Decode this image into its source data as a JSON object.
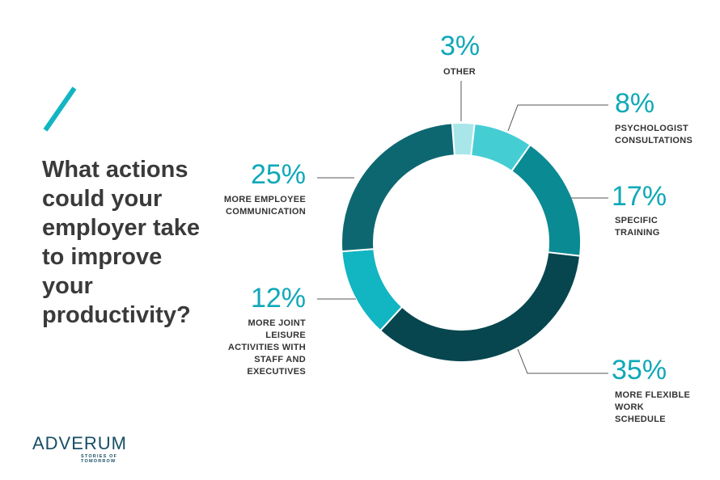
{
  "question": "What actions could your employer take to improve your productivity?",
  "logo": {
    "wordmark": "ADVERUM",
    "tagline": "STORIES OF TOMORROW"
  },
  "chart_data": {
    "type": "donut",
    "title": "",
    "unit": "%",
    "slices": [
      {
        "label": "OTHER",
        "value": 3,
        "display": "3%",
        "color": "#a8e6ea"
      },
      {
        "label": "PSYCHOLOGIST CONSULTATIONS",
        "value": 8,
        "display": "8%",
        "color": "#45cdd4"
      },
      {
        "label": "SPECIFIC TRAINING",
        "value": 17,
        "display": "17%",
        "color": "#0a8a93"
      },
      {
        "label": "MORE FLEXIBLE WORK SCHEDULE",
        "value": 35,
        "display": "35%",
        "color": "#07464f"
      },
      {
        "label": "MORE JOINT LEISURE ACTIVITIES WITH STAFF AND EXECUTIVES",
        "value": 12,
        "display": "12%",
        "color": "#12b5c2"
      },
      {
        "label": "MORE EMPLOYEE COMMUNICATION",
        "value": 25,
        "display": "25%",
        "color": "#0d6770"
      }
    ]
  },
  "colors": {
    "accent": "#0fa8b8",
    "text": "#333333",
    "leader": "#555555"
  }
}
